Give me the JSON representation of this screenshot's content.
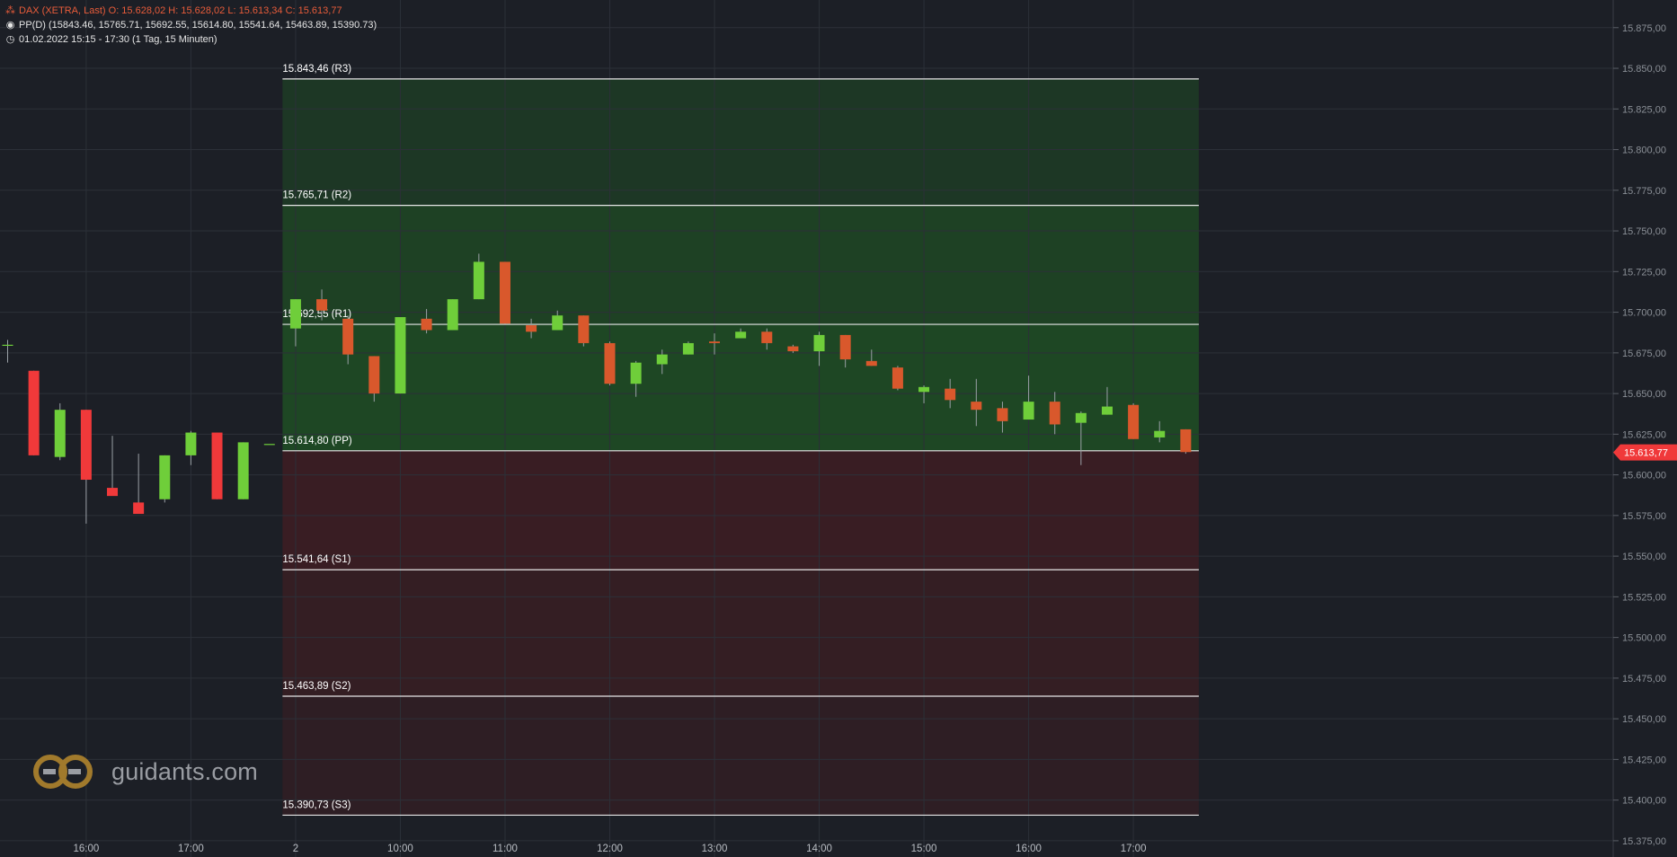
{
  "header": {
    "ohlc": "DAX (XETRA, Last)  O: 15.628,02  H: 15.628,02  L: 15.613,34  C: 15.613,77",
    "pivot": "PP(D)  (15843.46, 15765.71, 15692.55, 15614.80, 15541.64, 15463.89, 15390.73)",
    "range": "01.02.2022 15:15 - 17:30   (1 Tag, 15 Minuten)"
  },
  "logo": {
    "text": "guidants.com"
  },
  "colors": {
    "background": "#1c1f26",
    "up_prev": "#6fce3a",
    "down_prev": "#f0393a",
    "up": "#6fce3a",
    "down": "#d9582c",
    "resistance_zone": "#1f4a24",
    "support_zone": "#3b1e23",
    "level_line": "#e6e6e6",
    "last_price": "#f0393a"
  },
  "chart_data": {
    "type": "candlestick",
    "title": "DAX (XETRA, Last)",
    "interval": "15 Minuten",
    "y_axis": {
      "ylim": [
        15365,
        15892
      ],
      "ticks": [
        "15.375,00",
        "15.400,00",
        "15.425,00",
        "15.450,00",
        "15.475,00",
        "15.500,00",
        "15.525,00",
        "15.550,00",
        "15.575,00",
        "15.600,00",
        "15.625,00",
        "15.650,00",
        "15.675,00",
        "15.700,00",
        "15.725,00",
        "15.750,00",
        "15.775,00",
        "15.800,00",
        "15.825,00",
        "15.850,00",
        "15.875,00"
      ],
      "tick_values": [
        15375,
        15400,
        15425,
        15450,
        15475,
        15500,
        15525,
        15550,
        15575,
        15600,
        15625,
        15650,
        15675,
        15700,
        15725,
        15750,
        15775,
        15800,
        15825,
        15850,
        15875
      ]
    },
    "x_axis": {
      "labels": [
        "16:00",
        "17:00",
        "2",
        "10:00",
        "11:00",
        "12:00",
        "13:00",
        "14:00",
        "15:00",
        "16:00",
        "17:00"
      ],
      "label_slots": [
        3,
        7,
        11,
        15,
        19,
        23,
        27,
        31,
        35,
        39,
        43
      ]
    },
    "pivot_levels": [
      {
        "label": "15.843,46 (R3)",
        "value": 15843.46
      },
      {
        "label": "15.765,71 (R2)",
        "value": 15765.71
      },
      {
        "label": "15.692,55 (R1)",
        "value": 15692.55
      },
      {
        "label": "15.614,80 (PP)",
        "value": 15614.8
      },
      {
        "label": "15.541,64 (S1)",
        "value": 15541.64
      },
      {
        "label": "15.463,89 (S2)",
        "value": 15463.89
      },
      {
        "label": "15.390,73 (S3)",
        "value": 15390.73
      }
    ],
    "pivot_start_slot": 10.5,
    "pivot_end_slot": 45.5,
    "last_price": {
      "label": "15.613,77",
      "value": 15613.77
    },
    "previous_day_candles": [
      {
        "slot": 0,
        "o": 15680,
        "h": 15683,
        "l": 15669,
        "c": 15680
      },
      {
        "slot": 1,
        "o": 15664,
        "h": 15664,
        "l": 15612,
        "c": 15612
      },
      {
        "slot": 2,
        "o": 15611,
        "h": 15644,
        "l": 15609,
        "c": 15640
      },
      {
        "slot": 3,
        "o": 15640,
        "h": 15640,
        "l": 15570,
        "c": 15597
      },
      {
        "slot": 4,
        "o": 15592,
        "h": 15624,
        "l": 15588,
        "c": 15587
      },
      {
        "slot": 5,
        "o": 15583,
        "h": 15613,
        "l": 15580,
        "c": 15576
      },
      {
        "slot": 6,
        "o": 15585,
        "h": 15612,
        "l": 15583,
        "c": 15612
      },
      {
        "slot": 7,
        "o": 15612,
        "h": 15627,
        "l": 15606,
        "c": 15626
      },
      {
        "slot": 8,
        "o": 15626,
        "h": 15626,
        "l": 15585,
        "c": 15585
      },
      {
        "slot": 9,
        "o": 15585,
        "h": 15620,
        "l": 15585,
        "c": 15620
      },
      {
        "slot": 10,
        "o": 15619,
        "h": 15619,
        "l": 15619,
        "c": 15619
      }
    ],
    "candles": [
      {
        "slot": 11,
        "o": 15690,
        "h": 15708,
        "l": 15679,
        "c": 15708
      },
      {
        "slot": 12,
        "o": 15708,
        "h": 15714,
        "l": 15695,
        "c": 15701
      },
      {
        "slot": 13,
        "o": 15696,
        "h": 15698,
        "l": 15668,
        "c": 15674
      },
      {
        "slot": 14,
        "o": 15673,
        "h": 15673,
        "l": 15645,
        "c": 15650
      },
      {
        "slot": 15,
        "o": 15650,
        "h": 15697,
        "l": 15650,
        "c": 15697
      },
      {
        "slot": 16,
        "o": 15696,
        "h": 15702,
        "l": 15687,
        "c": 15689
      },
      {
        "slot": 17,
        "o": 15689,
        "h": 15708,
        "l": 15689,
        "c": 15708
      },
      {
        "slot": 18,
        "o": 15708,
        "h": 15736,
        "l": 15708,
        "c": 15731
      },
      {
        "slot": 19,
        "o": 15731,
        "h": 15731,
        "l": 15693,
        "c": 15693
      },
      {
        "slot": 20,
        "o": 15692,
        "h": 15696,
        "l": 15684,
        "c": 15688
      },
      {
        "slot": 21,
        "o": 15689,
        "h": 15701,
        "l": 15689,
        "c": 15698
      },
      {
        "slot": 22,
        "o": 15698,
        "h": 15698,
        "l": 15679,
        "c": 15681
      },
      {
        "slot": 23,
        "o": 15681,
        "h": 15682,
        "l": 15655,
        "c": 15656
      },
      {
        "slot": 24,
        "o": 15656,
        "h": 15670,
        "l": 15648,
        "c": 15669
      },
      {
        "slot": 25,
        "o": 15668,
        "h": 15677,
        "l": 15662,
        "c": 15674
      },
      {
        "slot": 26,
        "o": 15674,
        "h": 15682,
        "l": 15674,
        "c": 15681
      },
      {
        "slot": 27,
        "o": 15682,
        "h": 15687,
        "l": 15674,
        "c": 15681
      },
      {
        "slot": 28,
        "o": 15684,
        "h": 15690,
        "l": 15684,
        "c": 15688
      },
      {
        "slot": 29,
        "o": 15688,
        "h": 15690,
        "l": 15677,
        "c": 15681
      },
      {
        "slot": 30,
        "o": 15679,
        "h": 15680,
        "l": 15675,
        "c": 15676
      },
      {
        "slot": 31,
        "o": 15676,
        "h": 15688,
        "l": 15667,
        "c": 15686
      },
      {
        "slot": 32,
        "o": 15686,
        "h": 15686,
        "l": 15666,
        "c": 15671
      },
      {
        "slot": 33,
        "o": 15670,
        "h": 15677,
        "l": 15667,
        "c": 15667
      },
      {
        "slot": 34,
        "o": 15666,
        "h": 15667,
        "l": 15652,
        "c": 15653
      },
      {
        "slot": 35,
        "o": 15651,
        "h": 15655,
        "l": 15644,
        "c": 15654
      },
      {
        "slot": 36,
        "o": 15653,
        "h": 15659,
        "l": 15641,
        "c": 15646
      },
      {
        "slot": 37,
        "o": 15645,
        "h": 15659,
        "l": 15630,
        "c": 15640
      },
      {
        "slot": 38,
        "o": 15641,
        "h": 15645,
        "l": 15626,
        "c": 15633
      },
      {
        "slot": 39,
        "o": 15634,
        "h": 15661,
        "l": 15634,
        "c": 15645
      },
      {
        "slot": 40,
        "o": 15645,
        "h": 15651,
        "l": 15625,
        "c": 15631
      },
      {
        "slot": 41,
        "o": 15632,
        "h": 15639,
        "l": 15606,
        "c": 15638
      },
      {
        "slot": 42,
        "o": 15637,
        "h": 15654,
        "l": 15637,
        "c": 15642
      },
      {
        "slot": 43,
        "o": 15643,
        "h": 15644,
        "l": 15622,
        "c": 15622
      },
      {
        "slot": 44,
        "o": 15623,
        "h": 15633,
        "l": 15620,
        "c": 15627
      },
      {
        "slot": 45,
        "o": 15628,
        "h": 15628,
        "l": 15613,
        "c": 15614
      }
    ]
  }
}
